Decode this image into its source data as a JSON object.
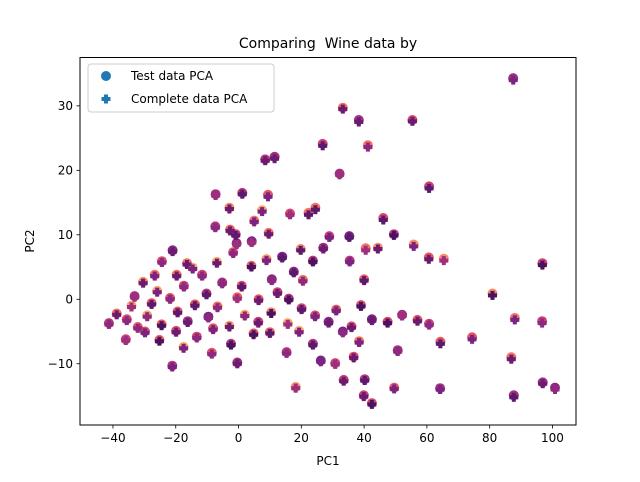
{
  "chart_data": {
    "type": "scatter",
    "title": "Comparing  Wine data by",
    "xlabel": "PC1",
    "ylabel": "PC2",
    "xlim": [
      -50.5,
      107.5
    ],
    "ylim": [
      -19.5,
      37.5
    ],
    "xticks": [
      -40,
      -20,
      0,
      20,
      40,
      60,
      80,
      100
    ],
    "yticks": [
      -10,
      0,
      10,
      20,
      30
    ],
    "xtick_labels": [
      "−40",
      "−20",
      "0",
      "20",
      "40",
      "60",
      "80",
      "100"
    ],
    "ytick_labels": [
      "−10",
      "0",
      "10",
      "20",
      "30"
    ],
    "grid": false,
    "legend_position": "upper-left",
    "legend": [
      {
        "label": "Test data PCA",
        "marker": "circle",
        "color": "#1f77b4"
      },
      {
        "label": "Complete data PCA",
        "marker": "plus",
        "color": "#1f77b4"
      }
    ],
    "color_notes": "points are colored by a magma-like colormap (dark purple to pale yellow)",
    "series": [
      {
        "name": "Test data PCA",
        "marker": "circle",
        "points": [
          [
            87.5,
            34.3
          ],
          [
            33.2,
            29.7
          ],
          [
            38.3,
            27.8
          ],
          [
            55.4,
            27.8
          ],
          [
            26.8,
            24.1
          ],
          [
            41.2,
            23.9
          ],
          [
            11.5,
            22.1
          ],
          [
            8.5,
            21.7
          ],
          [
            32.2,
            19.5
          ],
          [
            60.7,
            17.5
          ],
          [
            -7.3,
            16.3
          ],
          [
            1.2,
            16.5
          ],
          [
            9.4,
            16.2
          ],
          [
            -2.9,
            14.2
          ],
          [
            24.5,
            14.2
          ],
          [
            7.5,
            13.8
          ],
          [
            16.4,
            13.3
          ],
          [
            22.3,
            13.4
          ],
          [
            46.1,
            12.6
          ],
          [
            -7.4,
            11.3
          ],
          [
            5.0,
            12.2
          ],
          [
            -2.7,
            10.8
          ],
          [
            -0.9,
            10.1
          ],
          [
            9.6,
            10.3
          ],
          [
            35.3,
            9.8
          ],
          [
            28.9,
            9.8
          ],
          [
            49.5,
            10.1
          ],
          [
            55.8,
            8.5
          ],
          [
            4.2,
            9.0
          ],
          [
            -0.6,
            8.7
          ],
          [
            40.5,
            7.9
          ],
          [
            44.4,
            8.0
          ],
          [
            27.0,
            8.0
          ],
          [
            19.8,
            7.8
          ],
          [
            -21.0,
            7.6
          ],
          [
            -1.7,
            7.3
          ],
          [
            13.9,
            6.6
          ],
          [
            8.9,
            6.2
          ],
          [
            60.6,
            6.5
          ],
          [
            65.4,
            6.3
          ],
          [
            96.8,
            5.6
          ],
          [
            35.4,
            6.0
          ],
          [
            23.7,
            6.0
          ],
          [
            -16.4,
            5.6
          ],
          [
            -24.4,
            5.9
          ],
          [
            -6.9,
            5.8
          ],
          [
            4.1,
            5.2
          ],
          [
            -14.6,
            4.9
          ],
          [
            17.6,
            4.3
          ],
          [
            -11.6,
            3.8
          ],
          [
            -19.7,
            3.8
          ],
          [
            -26.7,
            3.8
          ],
          [
            10.6,
            3.1
          ],
          [
            20.5,
            3.0
          ],
          [
            40.0,
            3.1
          ],
          [
            -30.4,
            2.7
          ],
          [
            -5.2,
            2.6
          ],
          [
            -17.4,
            2.1
          ],
          [
            1.0,
            2.1
          ],
          [
            -25.9,
            1.3
          ],
          [
            80.9,
            0.9
          ],
          [
            -10.2,
            0.9
          ],
          [
            12.4,
            1.1
          ],
          [
            -33.1,
            0.5
          ],
          [
            -21.8,
            0.2
          ],
          [
            -0.4,
            0.3
          ],
          [
            16.0,
            0.1
          ],
          [
            6.4,
            0.0
          ],
          [
            -27.7,
            -0.6
          ],
          [
            -13.9,
            -0.8
          ],
          [
            -34.1,
            -1.0
          ],
          [
            -6.7,
            -1.1
          ],
          [
            39.0,
            -0.9
          ],
          [
            20.1,
            -1.4
          ],
          [
            31.1,
            -1.6
          ],
          [
            -19.4,
            -1.9
          ],
          [
            10.4,
            -2.0
          ],
          [
            -38.8,
            -2.2
          ],
          [
            2.0,
            -2.4
          ],
          [
            24.4,
            -2.5
          ],
          [
            -29.1,
            -2.5
          ],
          [
            52.1,
            -2.4
          ],
          [
            -9.6,
            -2.7
          ],
          [
            -35.6,
            -3.1
          ],
          [
            88.0,
            -2.9
          ],
          [
            42.5,
            -3.1
          ],
          [
            57.0,
            -3.2
          ],
          [
            -16.2,
            -3.4
          ],
          [
            28.7,
            -3.5
          ],
          [
            6.3,
            -3.5
          ],
          [
            -41.3,
            -3.7
          ],
          [
            47.5,
            -3.5
          ],
          [
            96.7,
            -3.4
          ],
          [
            15.7,
            -3.7
          ],
          [
            -24.5,
            -3.9
          ],
          [
            60.7,
            -3.8
          ],
          [
            -2.9,
            -4.1
          ],
          [
            -32.1,
            -4.3
          ],
          [
            36.0,
            -4.2
          ],
          [
            -8.1,
            -4.5
          ],
          [
            19.3,
            -4.9
          ],
          [
            -19.9,
            -4.9
          ],
          [
            -29.8,
            -5.0
          ],
          [
            33.2,
            -5.0
          ],
          [
            10.0,
            -5.1
          ],
          [
            4.8,
            -5.3
          ],
          [
            74.4,
            -5.9
          ],
          [
            -13.3,
            -5.8
          ],
          [
            -25.2,
            -6.3
          ],
          [
            -35.9,
            -6.2
          ],
          [
            38.4,
            -6.5
          ],
          [
            64.3,
            -6.6
          ],
          [
            -2.4,
            -6.9
          ],
          [
            23.7,
            -6.9
          ],
          [
            -17.5,
            -7.4
          ],
          [
            50.7,
            -7.9
          ],
          [
            -8.5,
            -8.3
          ],
          [
            15.3,
            -8.2
          ],
          [
            36.7,
            -8.9
          ],
          [
            86.9,
            -9.0
          ],
          [
            26.2,
            -9.5
          ],
          [
            -0.4,
            -9.8
          ],
          [
            30.8,
            -9.9
          ],
          [
            -21.1,
            -10.3
          ],
          [
            40.2,
            -12.4
          ],
          [
            33.5,
            -12.5
          ],
          [
            18.2,
            -13.6
          ],
          [
            96.9,
            -12.9
          ],
          [
            49.6,
            -13.7
          ],
          [
            64.2,
            -13.8
          ],
          [
            100.8,
            -13.7
          ],
          [
            39.9,
            -14.9
          ],
          [
            87.7,
            -14.9
          ],
          [
            42.5,
            -16.1
          ]
        ]
      },
      {
        "name": "Complete data PCA",
        "marker": "plus",
        "points": [
          [
            87.5,
            34.0
          ],
          [
            33.2,
            29.5
          ],
          [
            38.3,
            27.5
          ],
          [
            55.4,
            27.6
          ],
          [
            26.8,
            23.8
          ],
          [
            41.2,
            23.6
          ],
          [
            11.5,
            21.8
          ],
          [
            8.5,
            21.5
          ],
          [
            32.2,
            19.3
          ],
          [
            60.7,
            17.2
          ],
          [
            -7.3,
            16.1
          ],
          [
            1.2,
            16.3
          ],
          [
            9.4,
            15.9
          ],
          [
            -2.9,
            14.0
          ],
          [
            24.5,
            13.9
          ],
          [
            7.5,
            13.6
          ],
          [
            16.4,
            13.1
          ],
          [
            22.3,
            13.1
          ],
          [
            46.1,
            12.3
          ],
          [
            -7.4,
            11.1
          ],
          [
            5.0,
            12.0
          ],
          [
            -2.7,
            10.6
          ],
          [
            -0.9,
            9.9
          ],
          [
            9.6,
            10.1
          ],
          [
            35.3,
            9.6
          ],
          [
            28.9,
            9.6
          ],
          [
            49.5,
            9.9
          ],
          [
            55.8,
            8.2
          ],
          [
            4.2,
            8.8
          ],
          [
            -0.6,
            8.5
          ],
          [
            40.5,
            7.6
          ],
          [
            44.4,
            7.8
          ],
          [
            27.0,
            7.8
          ],
          [
            19.8,
            7.6
          ],
          [
            -21.0,
            7.4
          ],
          [
            -1.7,
            7.1
          ],
          [
            13.9,
            6.4
          ],
          [
            8.9,
            6.0
          ],
          [
            60.6,
            6.2
          ],
          [
            65.4,
            6.0
          ],
          [
            96.8,
            5.3
          ],
          [
            35.4,
            5.8
          ],
          [
            23.7,
            5.8
          ],
          [
            -16.4,
            5.4
          ],
          [
            -24.4,
            5.7
          ],
          [
            -6.9,
            5.6
          ],
          [
            4.1,
            5.0
          ],
          [
            -14.6,
            4.7
          ],
          [
            17.6,
            4.1
          ],
          [
            -11.6,
            3.6
          ],
          [
            -19.7,
            3.6
          ],
          [
            -26.7,
            3.6
          ],
          [
            10.6,
            2.9
          ],
          [
            20.5,
            2.8
          ],
          [
            40.0,
            2.9
          ],
          [
            -30.4,
            2.5
          ],
          [
            -5.2,
            2.4
          ],
          [
            -17.4,
            1.9
          ],
          [
            1.0,
            1.9
          ],
          [
            -25.9,
            1.1
          ],
          [
            80.9,
            0.6
          ],
          [
            -10.2,
            0.7
          ],
          [
            12.4,
            0.9
          ],
          [
            -33.1,
            0.3
          ],
          [
            -21.8,
            0.0
          ],
          [
            -0.4,
            0.1
          ],
          [
            16.0,
            -0.1
          ],
          [
            6.4,
            -0.2
          ],
          [
            -27.7,
            -0.8
          ],
          [
            -13.9,
            -1.0
          ],
          [
            -34.1,
            -1.2
          ],
          [
            -6.7,
            -1.3
          ],
          [
            39.0,
            -1.1
          ],
          [
            20.1,
            -1.6
          ],
          [
            31.1,
            -1.8
          ],
          [
            -19.4,
            -2.1
          ],
          [
            10.4,
            -2.2
          ],
          [
            -38.8,
            -2.4
          ],
          [
            2.0,
            -2.6
          ],
          [
            24.4,
            -2.7
          ],
          [
            -29.1,
            -2.7
          ],
          [
            52.1,
            -2.6
          ],
          [
            -9.6,
            -2.9
          ],
          [
            -35.6,
            -3.3
          ],
          [
            88.0,
            -3.2
          ],
          [
            42.5,
            -3.3
          ],
          [
            57.0,
            -3.4
          ],
          [
            -16.2,
            -3.6
          ],
          [
            28.7,
            -3.7
          ],
          [
            6.3,
            -3.7
          ],
          [
            -41.3,
            -3.9
          ],
          [
            47.5,
            -3.7
          ],
          [
            96.7,
            -3.7
          ],
          [
            15.7,
            -3.9
          ],
          [
            -24.5,
            -4.1
          ],
          [
            60.7,
            -4.0
          ],
          [
            -2.9,
            -4.3
          ],
          [
            -32.1,
            -4.5
          ],
          [
            36.0,
            -4.4
          ],
          [
            -8.1,
            -4.7
          ],
          [
            19.3,
            -5.1
          ],
          [
            -19.9,
            -5.1
          ],
          [
            -29.8,
            -5.2
          ],
          [
            33.2,
            -5.2
          ],
          [
            10.0,
            -5.3
          ],
          [
            4.8,
            -5.5
          ],
          [
            74.4,
            -6.2
          ],
          [
            -13.3,
            -6.0
          ],
          [
            -25.2,
            -6.5
          ],
          [
            -35.9,
            -6.4
          ],
          [
            38.4,
            -6.7
          ],
          [
            64.3,
            -6.9
          ],
          [
            -2.4,
            -7.1
          ],
          [
            23.7,
            -7.1
          ],
          [
            -17.5,
            -7.6
          ],
          [
            50.7,
            -8.1
          ],
          [
            -8.5,
            -8.5
          ],
          [
            15.3,
            -8.4
          ],
          [
            36.7,
            -9.1
          ],
          [
            86.9,
            -9.3
          ],
          [
            26.2,
            -9.7
          ],
          [
            -0.4,
            -10.0
          ],
          [
            30.8,
            -10.1
          ],
          [
            -21.1,
            -10.5
          ],
          [
            40.2,
            -12.6
          ],
          [
            33.5,
            -12.7
          ],
          [
            18.2,
            -13.8
          ],
          [
            96.9,
            -13.1
          ],
          [
            49.6,
            -13.9
          ],
          [
            64.2,
            -14.0
          ],
          [
            100.8,
            -14.0
          ],
          [
            39.9,
            -15.1
          ],
          [
            87.7,
            -15.2
          ],
          [
            42.5,
            -16.3
          ]
        ]
      }
    ]
  }
}
